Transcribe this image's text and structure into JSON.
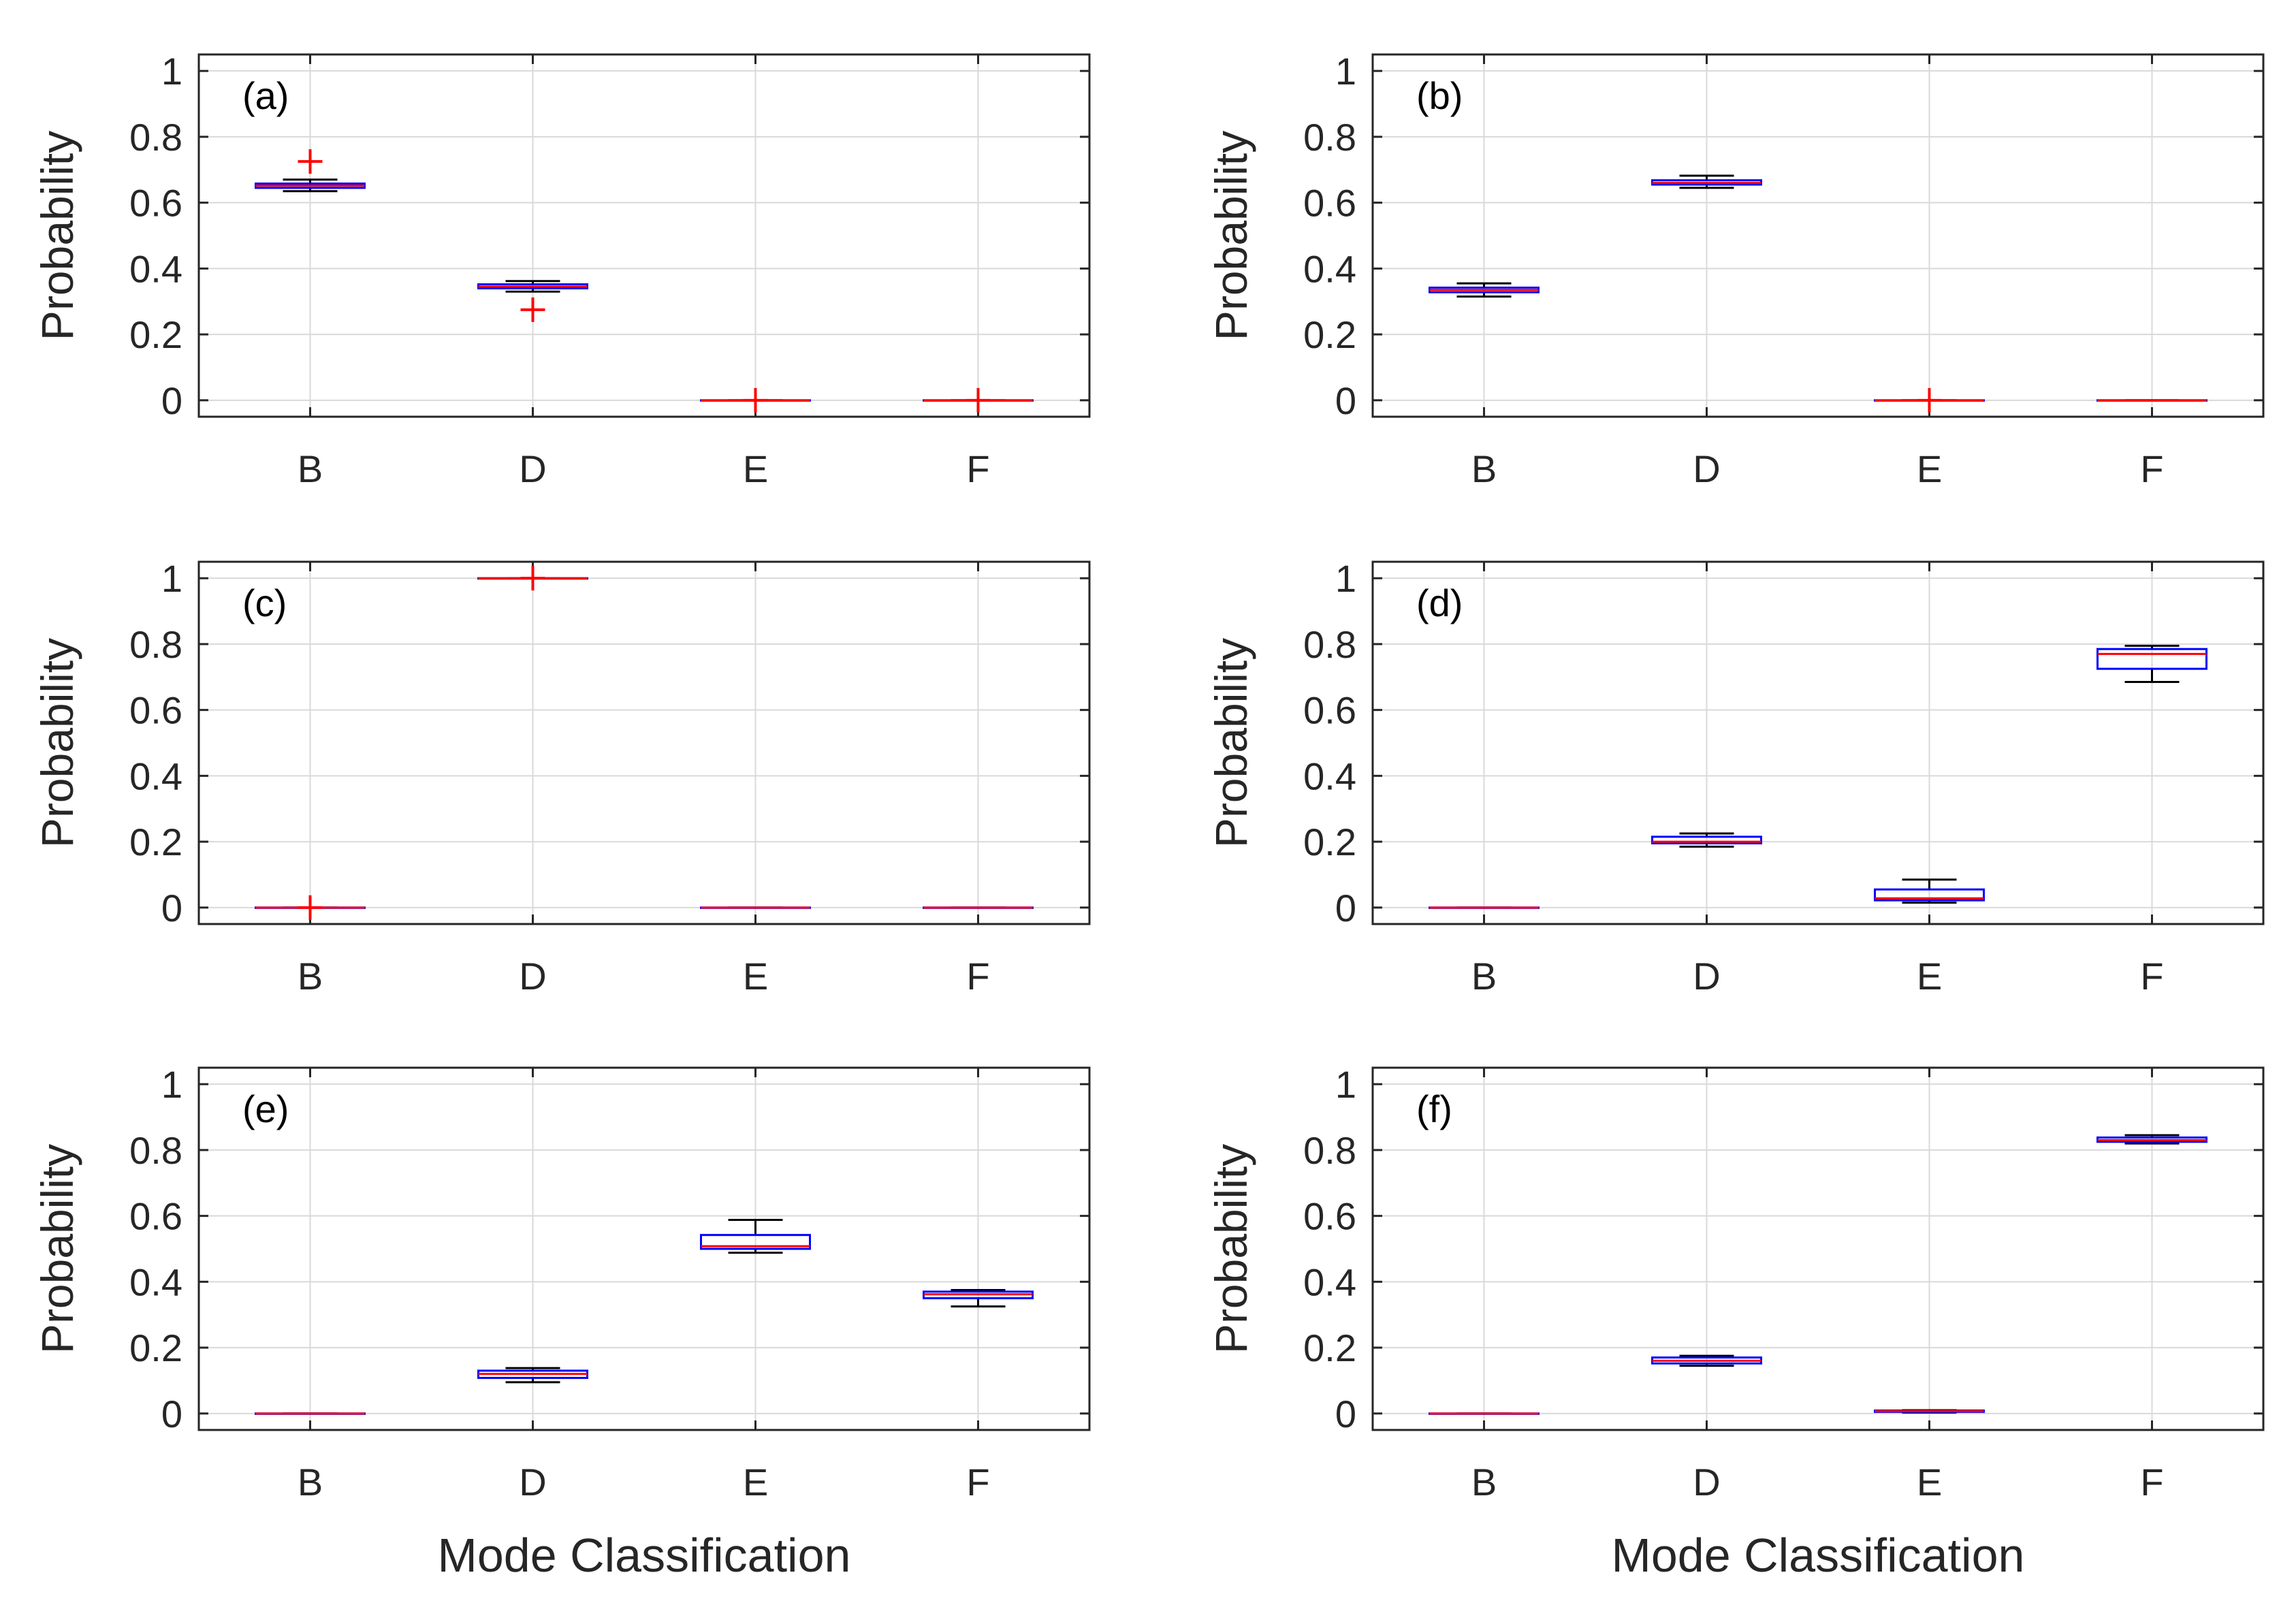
{
  "chart_data": [
    {
      "type": "box",
      "panel": "(a)",
      "categories": [
        "B",
        "D",
        "E",
        "F"
      ],
      "ylabel": "Probability",
      "xlabel": "",
      "ylim": [
        -0.05,
        1.05
      ],
      "yticks": [
        0,
        0.2,
        0.4,
        0.6,
        0.8,
        1
      ],
      "ytick_labels": [
        "0",
        "0.2",
        "0.4",
        "0.6",
        "0.8",
        "1"
      ],
      "grid": true,
      "boxes": [
        {
          "whisker_low": 0.635,
          "q1": 0.645,
          "median": 0.652,
          "q3": 0.658,
          "whisker_high": 0.67,
          "outliers": [
            0.725
          ]
        },
        {
          "whisker_low": 0.33,
          "q1": 0.34,
          "median": 0.345,
          "q3": 0.352,
          "whisker_high": 0.362,
          "outliers": [
            0.275
          ]
        },
        {
          "whisker_low": 0,
          "q1": 0,
          "median": 0,
          "q3": 0,
          "whisker_high": 0,
          "outliers": [
            0
          ]
        },
        {
          "whisker_low": 0,
          "q1": 0,
          "median": 0,
          "q3": 0,
          "whisker_high": 0,
          "outliers": [
            0
          ]
        }
      ]
    },
    {
      "type": "box",
      "panel": "(b)",
      "categories": [
        "B",
        "D",
        "E",
        "F"
      ],
      "ylabel": "Probability",
      "xlabel": "",
      "ylim": [
        -0.05,
        1.05
      ],
      "yticks": [
        0,
        0.2,
        0.4,
        0.6,
        0.8,
        1
      ],
      "ytick_labels": [
        "0",
        "0.2",
        "0.4",
        "0.6",
        "0.8",
        "1"
      ],
      "grid": true,
      "boxes": [
        {
          "whisker_low": 0.315,
          "q1": 0.328,
          "median": 0.335,
          "q3": 0.342,
          "whisker_high": 0.355,
          "outliers": []
        },
        {
          "whisker_low": 0.645,
          "q1": 0.655,
          "median": 0.66,
          "q3": 0.668,
          "whisker_high": 0.682,
          "outliers": []
        },
        {
          "whisker_low": 0,
          "q1": 0,
          "median": 0,
          "q3": 0,
          "whisker_high": 0,
          "outliers": [
            0
          ]
        },
        {
          "whisker_low": 0,
          "q1": 0,
          "median": 0,
          "q3": 0,
          "whisker_high": 0,
          "outliers": []
        }
      ]
    },
    {
      "type": "box",
      "panel": "(c)",
      "categories": [
        "B",
        "D",
        "E",
        "F"
      ],
      "ylabel": "Probability",
      "xlabel": "",
      "ylim": [
        -0.05,
        1.05
      ],
      "yticks": [
        0,
        0.2,
        0.4,
        0.6,
        0.8,
        1
      ],
      "ytick_labels": [
        "0",
        "0.2",
        "0.4",
        "0.6",
        "0.8",
        "1"
      ],
      "grid": true,
      "boxes": [
        {
          "whisker_low": 0,
          "q1": 0,
          "median": 0,
          "q3": 0,
          "whisker_high": 0,
          "outliers": [
            0
          ]
        },
        {
          "whisker_low": 1,
          "q1": 1,
          "median": 1,
          "q3": 1,
          "whisker_high": 1,
          "outliers": [
            1
          ]
        },
        {
          "whisker_low": 0,
          "q1": 0,
          "median": 0,
          "q3": 0,
          "whisker_high": 0,
          "outliers": []
        },
        {
          "whisker_low": 0,
          "q1": 0,
          "median": 0,
          "q3": 0,
          "whisker_high": 0,
          "outliers": []
        }
      ]
    },
    {
      "type": "box",
      "panel": "(d)",
      "categories": [
        "B",
        "D",
        "E",
        "F"
      ],
      "ylabel": "Probability",
      "xlabel": "",
      "ylim": [
        -0.05,
        1.05
      ],
      "yticks": [
        0,
        0.2,
        0.4,
        0.6,
        0.8,
        1
      ],
      "ytick_labels": [
        "0",
        "0.2",
        "0.4",
        "0.6",
        "0.8",
        "1"
      ],
      "grid": true,
      "boxes": [
        {
          "whisker_low": 0,
          "q1": 0,
          "median": 0,
          "q3": 0,
          "whisker_high": 0,
          "outliers": []
        },
        {
          "whisker_low": 0.185,
          "q1": 0.195,
          "median": 0.2,
          "q3": 0.215,
          "whisker_high": 0.225,
          "outliers": []
        },
        {
          "whisker_low": 0.015,
          "q1": 0.022,
          "median": 0.028,
          "q3": 0.055,
          "whisker_high": 0.085,
          "outliers": []
        },
        {
          "whisker_low": 0.685,
          "q1": 0.725,
          "median": 0.77,
          "q3": 0.785,
          "whisker_high": 0.795,
          "outliers": []
        }
      ]
    },
    {
      "type": "box",
      "panel": "(e)",
      "categories": [
        "B",
        "D",
        "E",
        "F"
      ],
      "ylabel": "Probability",
      "xlabel": "Mode Classification",
      "ylim": [
        -0.05,
        1.05
      ],
      "yticks": [
        0,
        0.2,
        0.4,
        0.6,
        0.8,
        1
      ],
      "ytick_labels": [
        "0",
        "0.2",
        "0.4",
        "0.6",
        "0.8",
        "1"
      ],
      "grid": true,
      "boxes": [
        {
          "whisker_low": 0,
          "q1": 0,
          "median": 0,
          "q3": 0,
          "whisker_high": 0,
          "outliers": []
        },
        {
          "whisker_low": 0.095,
          "q1": 0.108,
          "median": 0.12,
          "q3": 0.13,
          "whisker_high": 0.138,
          "outliers": []
        },
        {
          "whisker_low": 0.488,
          "q1": 0.5,
          "median": 0.508,
          "q3": 0.542,
          "whisker_high": 0.588,
          "outliers": []
        },
        {
          "whisker_low": 0.325,
          "q1": 0.35,
          "median": 0.362,
          "q3": 0.37,
          "whisker_high": 0.375,
          "outliers": []
        }
      ]
    },
    {
      "type": "box",
      "panel": "(f)",
      "categories": [
        "B",
        "D",
        "E",
        "F"
      ],
      "ylabel": "Probability",
      "xlabel": "Mode Classification",
      "ylim": [
        -0.05,
        1.05
      ],
      "yticks": [
        0,
        0.2,
        0.4,
        0.6,
        0.8,
        1
      ],
      "ytick_labels": [
        "0",
        "0.2",
        "0.4",
        "0.6",
        "0.8",
        "1"
      ],
      "grid": true,
      "boxes": [
        {
          "whisker_low": 0,
          "q1": 0,
          "median": 0,
          "q3": 0,
          "whisker_high": 0,
          "outliers": []
        },
        {
          "whisker_low": 0.145,
          "q1": 0.152,
          "median": 0.16,
          "q3": 0.17,
          "whisker_high": 0.175,
          "outliers": []
        },
        {
          "whisker_low": 0.003,
          "q1": 0.005,
          "median": 0.007,
          "q3": 0.009,
          "whisker_high": 0.01,
          "outliers": []
        },
        {
          "whisker_low": 0.82,
          "q1": 0.825,
          "median": 0.83,
          "q3": 0.838,
          "whisker_high": 0.845,
          "outliers": []
        }
      ]
    }
  ],
  "colors": {
    "box": "#0000ff",
    "median": "#ff0000",
    "whisker": "#000000",
    "outlier": "#ff0000",
    "grid": "#d9d9d9",
    "axes": "#262626"
  }
}
